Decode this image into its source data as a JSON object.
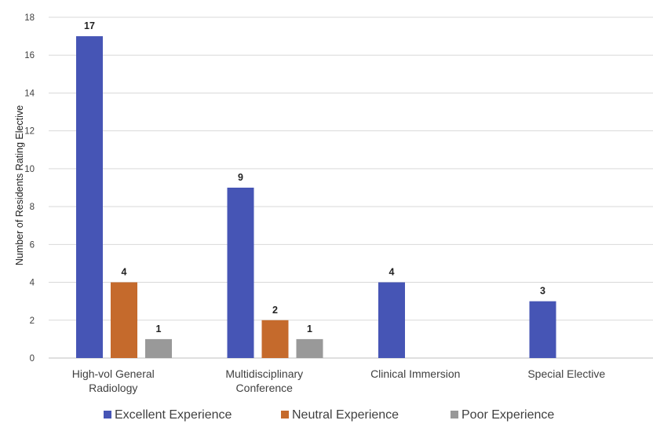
{
  "chart_data": {
    "type": "bar",
    "title": "",
    "xlabel": "",
    "ylabel": "Number of Residents Rating Elective",
    "ylim": [
      0,
      18
    ],
    "yticks": [
      0,
      2,
      4,
      6,
      8,
      10,
      12,
      14,
      16,
      18
    ],
    "grid": true,
    "legend_position": "bottom",
    "categories": [
      [
        "High-vol General",
        "Radiology"
      ],
      [
        "Multidisciplinary",
        "Conference"
      ],
      [
        "Clinical Immersion"
      ],
      [
        "Special Elective"
      ]
    ],
    "series": [
      {
        "name": "Excellent Experience",
        "color": "#4655b5",
        "values": [
          17,
          9,
          4,
          3
        ]
      },
      {
        "name": "Neutral Experience",
        "color": "#c56a2c",
        "values": [
          4,
          2,
          null,
          null
        ]
      },
      {
        "name": "Poor Experience",
        "color": "#999999",
        "values": [
          1,
          1,
          null,
          null
        ]
      }
    ]
  }
}
